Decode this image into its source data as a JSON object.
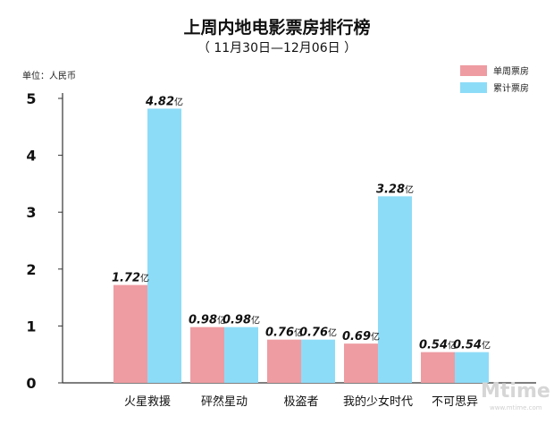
{
  "chart_data": {
    "type": "bar",
    "title": "上周内地电影票房排行榜",
    "subtitle": "（ 11月30日—12月06日 ）",
    "unit_label": "单位：人民币",
    "value_suffix": "亿",
    "categories": [
      "火星救援",
      "砰然星动",
      "极盗者",
      "我的少女时代",
      "不可思异"
    ],
    "series": [
      {
        "name": "单周票房",
        "color": "#ee9ca2",
        "values": [
          1.72,
          0.98,
          0.76,
          0.69,
          0.54
        ],
        "labels": [
          "1.72",
          "0.98",
          "0.76",
          "0.69",
          "0.54"
        ]
      },
      {
        "name": "累计票房",
        "color": "#8ddcf7",
        "values": [
          4.82,
          0.98,
          0.76,
          3.28,
          0.54
        ],
        "labels": [
          "4.82",
          "0.98",
          "0.76",
          "3.28",
          "0.54"
        ]
      }
    ],
    "yticks": [
      "0",
      "1",
      "2",
      "3",
      "4",
      "5"
    ],
    "ylim": [
      0,
      5
    ],
    "grid": false,
    "legend_position": "top-right"
  },
  "watermark": {
    "text": "Mtime",
    "subtext": "www.mtime.com"
  }
}
